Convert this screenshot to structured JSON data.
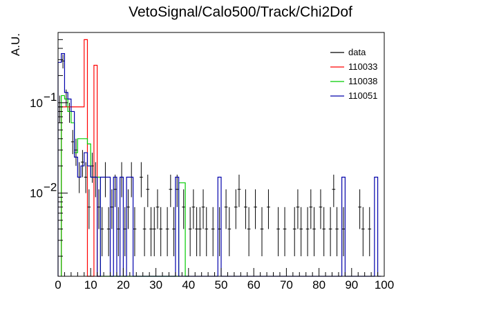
{
  "chart_data": {
    "type": "histogram",
    "title": "VetoSignal/Calo500/Track/Chi2Dof",
    "xlabel": "",
    "ylabel": "A.U.",
    "xlim": [
      0,
      100
    ],
    "ylim": [
      0.0012,
      0.6
    ],
    "yscale": "log",
    "bin_width": 1,
    "grid": false,
    "legend_position": "top-right",
    "x_tick_labels": [
      "0",
      "10",
      "20",
      "30",
      "40",
      "50",
      "60",
      "70",
      "80",
      "90",
      "100"
    ],
    "y_tick_labels": [
      {
        "value": 0.1,
        "label": "10",
        "exp": "−1"
      },
      {
        "value": 0.01,
        "label": "10",
        "exp": "−2"
      }
    ],
    "series": [
      {
        "name": "data",
        "color": "#000000",
        "style": "errorbars",
        "points": [
          [
            0.5,
            0.09,
            0.12,
            0.06
          ],
          [
            1.5,
            0.29,
            0.34,
            0.24
          ],
          [
            2.5,
            0.11,
            0.14,
            0.09
          ],
          [
            3.5,
            0.08,
            0.1,
            0.06
          ],
          [
            4.5,
            0.037,
            0.05,
            0.027
          ],
          [
            5.5,
            0.03,
            0.04,
            0.02
          ],
          [
            6.5,
            0.015,
            0.022,
            0.01
          ],
          [
            7.5,
            0.022,
            0.03,
            0.015
          ],
          [
            8.5,
            0.015,
            0.022,
            0.01
          ],
          [
            9.5,
            0.007,
            0.011,
            0.004
          ],
          [
            10.5,
            0.02,
            0.028,
            0.013
          ],
          [
            11.5,
            0.015,
            0.022,
            0.009
          ],
          [
            12.5,
            0.007,
            0.011,
            0.004
          ],
          [
            13.5,
            0.004,
            0.007,
            0.002
          ],
          [
            14.5,
            0.015,
            0.022,
            0.009
          ],
          [
            15.5,
            0.004,
            0.007,
            0.002
          ],
          [
            16.5,
            0.007,
            0.011,
            0.004
          ],
          [
            17.5,
            0.011,
            0.016,
            0.007
          ],
          [
            18.5,
            0.004,
            0.007,
            0.002
          ],
          [
            19.5,
            0.015,
            0.022,
            0.009
          ],
          [
            20.5,
            0.004,
            0.007,
            0.002
          ],
          [
            21.5,
            0.007,
            0.011,
            0.004
          ],
          [
            22.5,
            0.015,
            0.022,
            0.009
          ],
          [
            23.5,
            0.004,
            0.007,
            0.002
          ],
          [
            25.5,
            0.015,
            0.022,
            0.009
          ],
          [
            26.5,
            0.004,
            0.007,
            0.002
          ],
          [
            27.5,
            0.011,
            0.016,
            0.007
          ],
          [
            28.5,
            0.004,
            0.007,
            0.002
          ],
          [
            29.5,
            0.004,
            0.007,
            0.002
          ],
          [
            30.5,
            0.007,
            0.011,
            0.004
          ],
          [
            31.5,
            0.004,
            0.007,
            0.002
          ],
          [
            33.5,
            0.004,
            0.007,
            0.002
          ],
          [
            34.5,
            0.011,
            0.016,
            0.007
          ],
          [
            35.5,
            0.004,
            0.007,
            0.002
          ],
          [
            36.5,
            0.011,
            0.016,
            0.007
          ],
          [
            38.5,
            0.007,
            0.011,
            0.004
          ],
          [
            40.5,
            0.004,
            0.007,
            0.002
          ],
          [
            41.5,
            0.007,
            0.011,
            0.004
          ],
          [
            42.5,
            0.004,
            0.007,
            0.002
          ],
          [
            43.5,
            0.004,
            0.007,
            0.002
          ],
          [
            44.5,
            0.007,
            0.011,
            0.004
          ],
          [
            45.5,
            0.004,
            0.007,
            0.002
          ],
          [
            47.5,
            0.004,
            0.007,
            0.002
          ],
          [
            49.5,
            0.004,
            0.007,
            0.002
          ],
          [
            51.5,
            0.007,
            0.011,
            0.004
          ],
          [
            52.5,
            0.004,
            0.007,
            0.002
          ],
          [
            54.5,
            0.007,
            0.011,
            0.004
          ],
          [
            55.5,
            0.011,
            0.016,
            0.007
          ],
          [
            57.5,
            0.007,
            0.011,
            0.004
          ],
          [
            58.5,
            0.004,
            0.007,
            0.002
          ],
          [
            60.5,
            0.007,
            0.011,
            0.004
          ],
          [
            62.5,
            0.004,
            0.007,
            0.002
          ],
          [
            64.5,
            0.007,
            0.011,
            0.004
          ],
          [
            67.5,
            0.004,
            0.007,
            0.002
          ],
          [
            69.5,
            0.004,
            0.007,
            0.002
          ],
          [
            72.5,
            0.004,
            0.007,
            0.002
          ],
          [
            73.5,
            0.007,
            0.011,
            0.004
          ],
          [
            74.5,
            0.004,
            0.007,
            0.002
          ],
          [
            76.5,
            0.004,
            0.007,
            0.002
          ],
          [
            77.5,
            0.007,
            0.011,
            0.004
          ],
          [
            78.5,
            0.004,
            0.007,
            0.002
          ],
          [
            80.5,
            0.007,
            0.011,
            0.004
          ],
          [
            81.5,
            0.004,
            0.007,
            0.002
          ],
          [
            83.5,
            0.004,
            0.007,
            0.002
          ],
          [
            84.5,
            0.011,
            0.016,
            0.007
          ],
          [
            85.5,
            0.004,
            0.007,
            0.002
          ],
          [
            87.5,
            0.004,
            0.007,
            0.002
          ],
          [
            92.5,
            0.007,
            0.011,
            0.004
          ],
          [
            93.5,
            0.004,
            0.007,
            0.002
          ],
          [
            95.5,
            0.004,
            0.007,
            0.002
          ]
        ]
      },
      {
        "name": "110033",
        "color": "#ff0000",
        "style": "step",
        "bins": [
          [
            1,
            0.09
          ],
          [
            8,
            0.5
          ],
          [
            9,
            0.0
          ],
          [
            11,
            0.26
          ],
          [
            12,
            0.0
          ]
        ]
      },
      {
        "name": "110038",
        "color": "#00cc00",
        "style": "step",
        "bins": [
          [
            1,
            0.12
          ],
          [
            2,
            0.11
          ],
          [
            3,
            0.08
          ],
          [
            4,
            0.06
          ],
          [
            5,
            0.028
          ],
          [
            6,
            0.04
          ],
          [
            7,
            0.04
          ],
          [
            8,
            0.04
          ],
          [
            9,
            0.035
          ],
          [
            10,
            0.015
          ],
          [
            11,
            0.015
          ],
          [
            12,
            0.015
          ],
          [
            13,
            0.0
          ],
          [
            15,
            0.0
          ],
          [
            37,
            0.013
          ],
          [
            38,
            0.013
          ],
          [
            39,
            0.0
          ]
        ]
      },
      {
        "name": "110051",
        "color": "#0000aa",
        "style": "step",
        "bins": [
          [
            0,
            0.28
          ],
          [
            1,
            0.35
          ],
          [
            2,
            0.13
          ],
          [
            3,
            0.11
          ],
          [
            4,
            0.08
          ],
          [
            5,
            0.025
          ],
          [
            6,
            0.015
          ],
          [
            7,
            0.02
          ],
          [
            8,
            0.028
          ],
          [
            9,
            0.02
          ],
          [
            10,
            0.015
          ],
          [
            11,
            0.015
          ],
          [
            12,
            0.0
          ],
          [
            13,
            0.015
          ],
          [
            14,
            0.015
          ],
          [
            15,
            0.015
          ],
          [
            16,
            0.0
          ],
          [
            17,
            0.015
          ],
          [
            18,
            0.0
          ],
          [
            19,
            0.015
          ],
          [
            20,
            0.0
          ],
          [
            21,
            0.015
          ],
          [
            22,
            0.015
          ],
          [
            23,
            0.0
          ],
          [
            36,
            0.015
          ],
          [
            37,
            0.0
          ],
          [
            49,
            0.015
          ],
          [
            50,
            0.0
          ],
          [
            87,
            0.015
          ],
          [
            88,
            0.0
          ],
          [
            97,
            0.015
          ],
          [
            98,
            0.0
          ]
        ]
      }
    ]
  }
}
